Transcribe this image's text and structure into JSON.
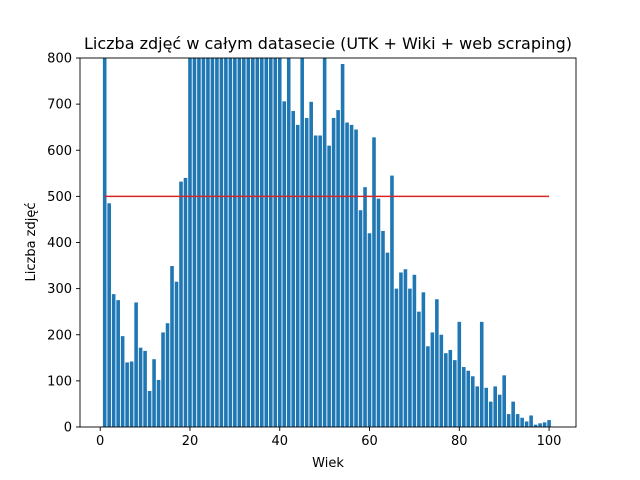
{
  "chart_data": {
    "type": "bar",
    "title": "Liczba zdjęć w całym datasecie (UTK + Wiki + web scraping)",
    "xlabel": "Wiek",
    "ylabel": "Liczba zdjęć",
    "xlim": [
      -4.5,
      106
    ],
    "ylim": [
      0,
      800
    ],
    "xticks": [
      0,
      20,
      40,
      60,
      80,
      100
    ],
    "yticks": [
      0,
      100,
      200,
      300,
      400,
      500,
      600,
      700,
      800
    ],
    "grid": false,
    "x": [
      1,
      2,
      3,
      4,
      5,
      6,
      7,
      8,
      9,
      10,
      11,
      12,
      13,
      14,
      15,
      16,
      17,
      18,
      19,
      20,
      21,
      22,
      23,
      24,
      25,
      26,
      27,
      28,
      29,
      30,
      31,
      32,
      33,
      34,
      35,
      36,
      37,
      38,
      39,
      40,
      41,
      42,
      43,
      44,
      45,
      46,
      47,
      48,
      49,
      50,
      51,
      52,
      53,
      54,
      55,
      56,
      57,
      58,
      59,
      60,
      61,
      62,
      63,
      64,
      65,
      66,
      67,
      68,
      69,
      70,
      71,
      72,
      73,
      74,
      75,
      76,
      77,
      78,
      79,
      80,
      81,
      82,
      83,
      84,
      85,
      86,
      87,
      88,
      89,
      90,
      91,
      92,
      93,
      94,
      95,
      96,
      97,
      98,
      99,
      100
    ],
    "values": [
      800,
      485,
      288,
      275,
      197,
      140,
      142,
      270,
      172,
      165,
      78,
      147,
      102,
      205,
      225,
      349,
      315,
      532,
      540,
      800,
      800,
      800,
      800,
      800,
      800,
      800,
      800,
      800,
      800,
      800,
      800,
      800,
      800,
      800,
      800,
      800,
      800,
      800,
      800,
      800,
      706,
      800,
      685,
      655,
      800,
      670,
      705,
      632,
      632,
      800,
      610,
      670,
      687,
      787,
      660,
      655,
      645,
      470,
      520,
      420,
      628,
      495,
      425,
      378,
      545,
      300,
      335,
      342,
      300,
      330,
      250,
      292,
      175,
      205,
      277,
      200,
      160,
      167,
      145,
      228,
      130,
      122,
      110,
      88,
      228,
      85,
      55,
      88,
      70,
      112,
      28,
      55,
      28,
      20,
      12,
      25,
      5,
      8,
      10,
      15
    ],
    "bar_color": "#1f77b4",
    "hline": {
      "y": 500,
      "x_range": [
        1,
        100
      ],
      "color": "#d62728"
    }
  }
}
